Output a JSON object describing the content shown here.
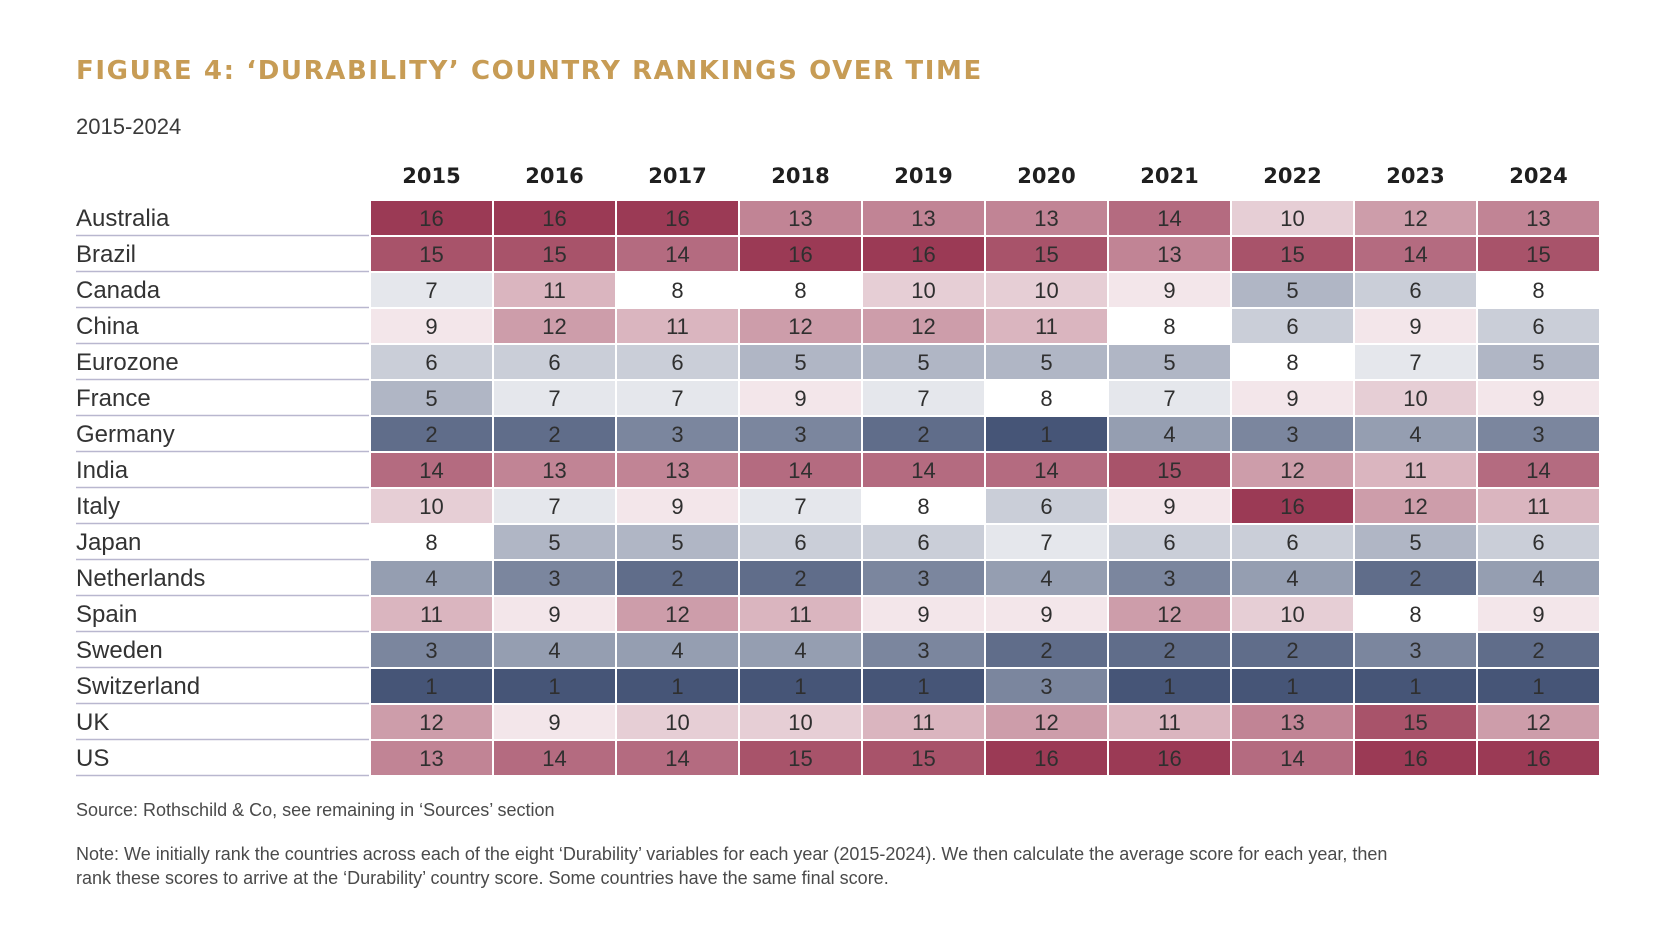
{
  "figure": {
    "title": "FIGURE 4: ‘DURABILITY’ COUNTRY RANKINGS OVER TIME",
    "subtitle": "2015-2024",
    "source": "Source: Rothschild & Co, see remaining in ‘Sources’ section",
    "note": "Note: We initially rank the countries across each of the eight ‘Durability’ variables for each year (2015-2024). We then calculate the average score for each year, then rank these scores to arrive at the ‘Durability’ country score. Some countries have the same final score."
  },
  "colors": {
    "title": "#c79c55",
    "low": "#465577",
    "mid": "#ffffff",
    "high": "#9b3a55",
    "rule": "#b9b7cf"
  },
  "chart_data": {
    "type": "heatmap",
    "title": "FIGURE 4: ‘DURABILITY’ COUNTRY RANKINGS OVER TIME",
    "subtitle": "2015-2024",
    "x": [
      "2015",
      "2016",
      "2017",
      "2018",
      "2019",
      "2020",
      "2021",
      "2022",
      "2023",
      "2024"
    ],
    "y": [
      "Australia",
      "Brazil",
      "Canada",
      "China",
      "Eurozone",
      "France",
      "Germany",
      "India",
      "Italy",
      "Japan",
      "Netherlands",
      "Spain",
      "Sweden",
      "Switzerland",
      "UK",
      "US"
    ],
    "values": [
      [
        16,
        16,
        16,
        13,
        13,
        13,
        14,
        10,
        12,
        13
      ],
      [
        15,
        15,
        14,
        16,
        16,
        15,
        13,
        15,
        14,
        15
      ],
      [
        7,
        11,
        8,
        8,
        10,
        10,
        9,
        5,
        6,
        8
      ],
      [
        9,
        12,
        11,
        12,
        12,
        11,
        8,
        6,
        9,
        6
      ],
      [
        6,
        6,
        6,
        5,
        5,
        5,
        5,
        8,
        7,
        5
      ],
      [
        5,
        7,
        7,
        9,
        7,
        8,
        7,
        9,
        10,
        9
      ],
      [
        2,
        2,
        3,
        3,
        2,
        1,
        4,
        3,
        4,
        3
      ],
      [
        14,
        13,
        13,
        14,
        14,
        14,
        15,
        12,
        11,
        14
      ],
      [
        10,
        7,
        9,
        7,
        8,
        6,
        9,
        16,
        12,
        11
      ],
      [
        8,
        5,
        5,
        6,
        6,
        7,
        6,
        6,
        5,
        6
      ],
      [
        4,
        3,
        2,
        2,
        3,
        4,
        3,
        4,
        2,
        4
      ],
      [
        11,
        9,
        12,
        11,
        9,
        9,
        12,
        10,
        8,
        9
      ],
      [
        3,
        4,
        4,
        4,
        3,
        2,
        2,
        2,
        3,
        2
      ],
      [
        1,
        1,
        1,
        1,
        1,
        3,
        1,
        1,
        1,
        1
      ],
      [
        12,
        9,
        10,
        10,
        11,
        12,
        11,
        13,
        15,
        12
      ],
      [
        13,
        14,
        14,
        15,
        15,
        16,
        16,
        14,
        16,
        16
      ]
    ],
    "value_range": [
      1,
      16
    ],
    "color_midpoint": 8
  }
}
